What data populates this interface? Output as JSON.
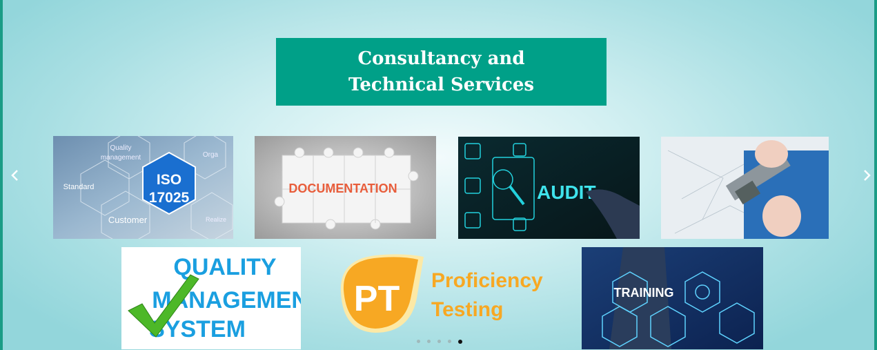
{
  "title": {
    "line1": "Consultancy and",
    "line2": "Technical Services"
  },
  "nav": {
    "prev_icon": "chevron-left-icon",
    "next_icon": "chevron-right-icon"
  },
  "tiles": {
    "iso": {
      "t1": "Quality",
      "t2": "management",
      "t3": "Orga",
      "t4": "Standard",
      "t5": "ISO",
      "t6": "17025",
      "t7": "Customer",
      "t8": "Realize"
    },
    "documentation": {
      "text": "DOCUMENTATION"
    },
    "audit": {
      "text": "AUDIT"
    },
    "qms": {
      "l1": "QUALITY",
      "l2": "MANAGEMENT",
      "l3": "SYSTEM"
    },
    "pt": {
      "mark": "PT",
      "l1": "Proficiency",
      "l2": "Testing"
    },
    "training": {
      "text": "TRAINING"
    }
  },
  "pager": {
    "count": 5,
    "active_index": 4
  },
  "colors": {
    "brand": "#00a088",
    "frame": "#1a9c86",
    "pt_orange": "#f7a823",
    "qms_blue": "#1a9fe0"
  }
}
